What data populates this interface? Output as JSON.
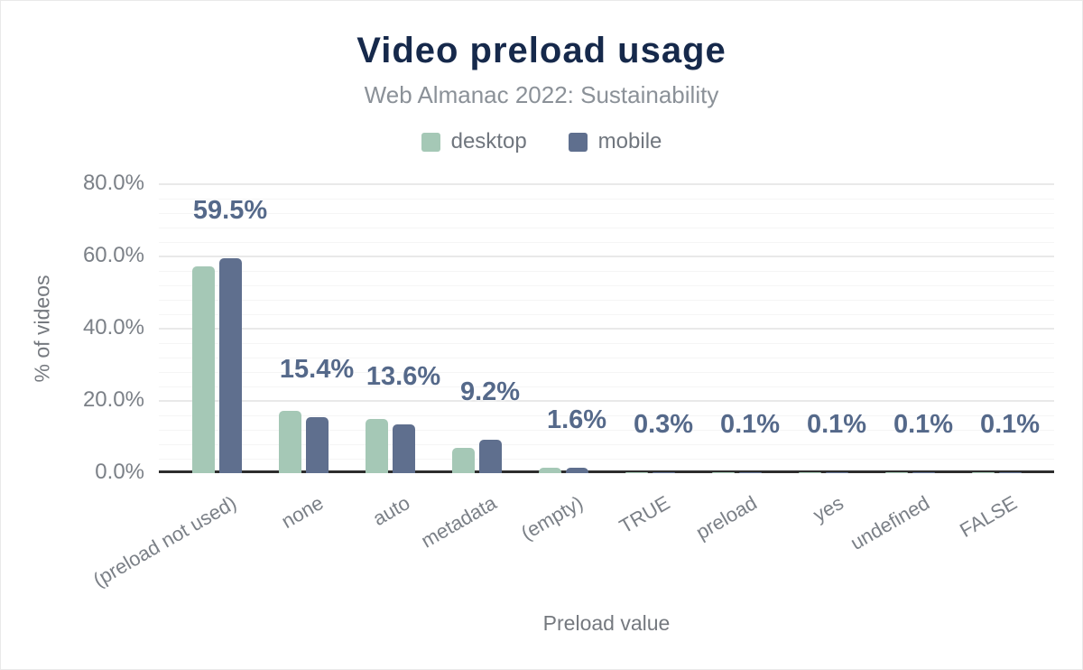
{
  "header": {
    "title": "Video preload usage",
    "subtitle": "Web Almanac 2022: Sustainability"
  },
  "legend": {
    "items": [
      {
        "label": "desktop",
        "color": "#a5c8b6"
      },
      {
        "label": "mobile",
        "color": "#5f6f8e"
      }
    ]
  },
  "axes": {
    "y_title": "% of videos",
    "x_title": "Preload value",
    "y_ticks": [
      {
        "value": 0,
        "label": "0.0%"
      },
      {
        "value": 20,
        "label": "20.0%"
      },
      {
        "value": 40,
        "label": "40.0%"
      },
      {
        "value": 60,
        "label": "60.0%"
      },
      {
        "value": 80,
        "label": "80.0%"
      }
    ]
  },
  "chart_data": {
    "type": "bar",
    "title": "Video preload usage",
    "subtitle": "Web Almanac 2022: Sustainability",
    "xlabel": "Preload value",
    "ylabel": "% of videos",
    "ylim": [
      0,
      83
    ],
    "y_major_step": 20,
    "y_minor_step": 4,
    "grid": true,
    "legend_position": "top",
    "categories": [
      "(preload not used)",
      "none",
      "auto",
      "metadata",
      "(empty)",
      "TRUE",
      "preload",
      "yes",
      "undefined",
      "FALSE"
    ],
    "series": [
      {
        "name": "desktop",
        "color": "#a5c8b6",
        "values": [
          57.2,
          17.2,
          15.1,
          6.9,
          1.4,
          0.2,
          0.1,
          0.1,
          0.1,
          0.1
        ]
      },
      {
        "name": "mobile",
        "color": "#5f6f8e",
        "values": [
          59.5,
          15.4,
          13.6,
          9.2,
          1.6,
          0.3,
          0.1,
          0.1,
          0.1,
          0.1
        ]
      }
    ],
    "annotations": {
      "series": "mobile",
      "labels": [
        "59.5%",
        "15.4%",
        "13.6%",
        "9.2%",
        "1.6%",
        "0.3%",
        "0.1%",
        "0.1%",
        "0.1%",
        "0.1%"
      ]
    },
    "colors": {
      "annotation": "#55698a",
      "axis_line": "#2d2d2d",
      "tick_text": "#7b8087",
      "title": "#16294b",
      "subtitle": "#8b9198"
    }
  }
}
